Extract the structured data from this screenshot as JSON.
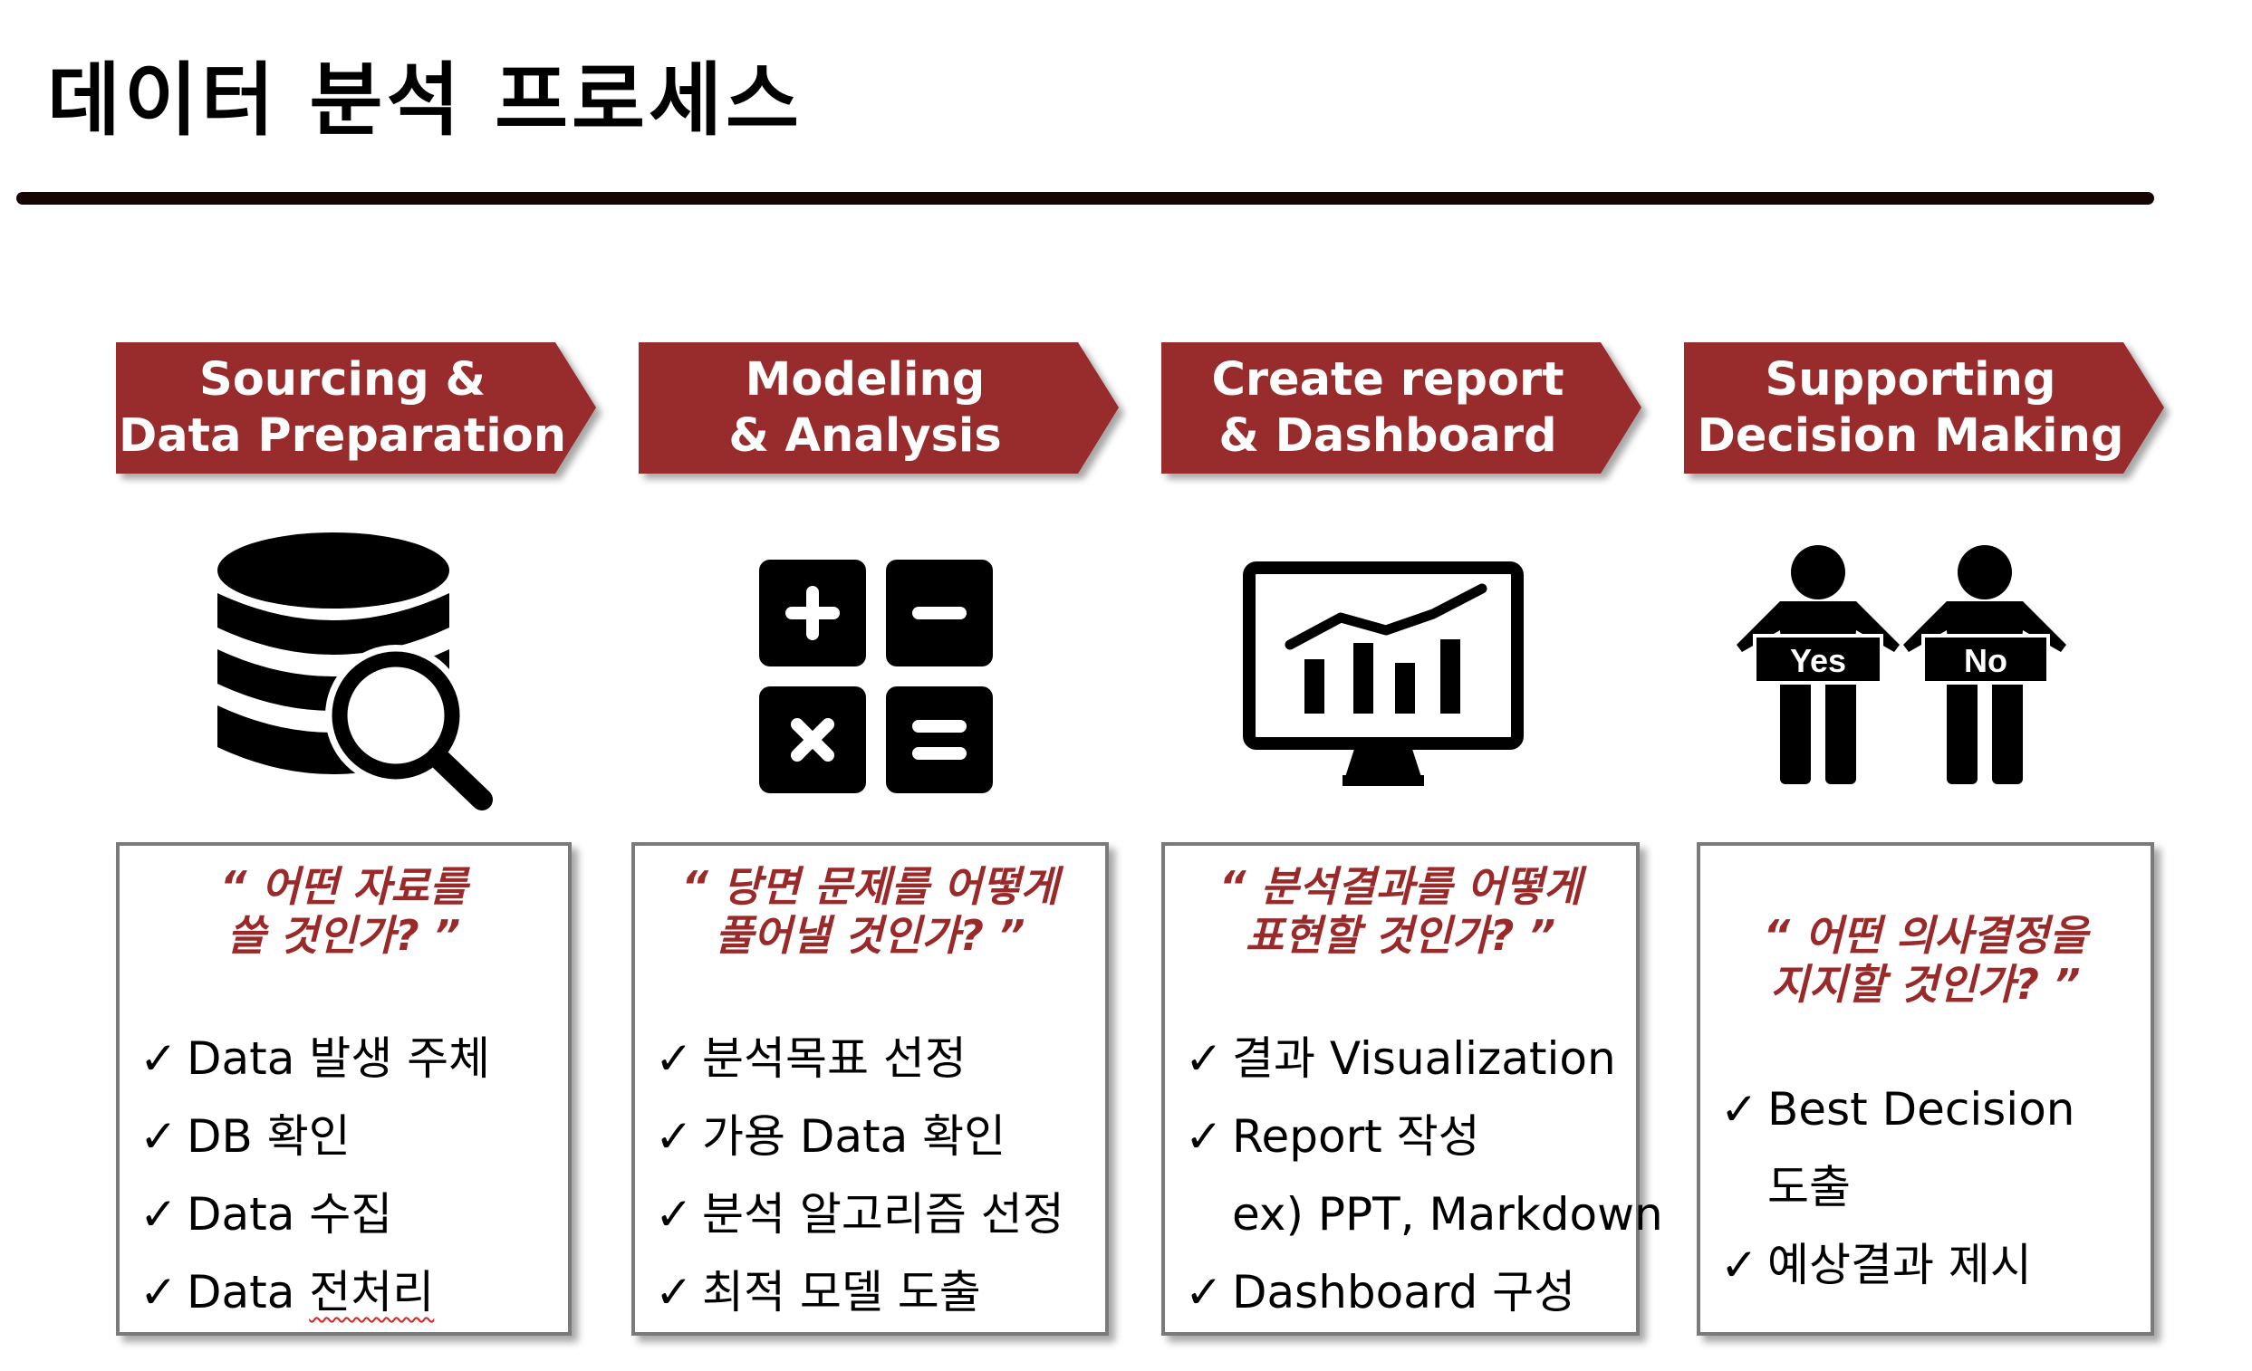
{
  "title": "데이터 분석 프로세스",
  "colors": {
    "accent": "#982b2b",
    "rule": "#150404",
    "quote": "#9a2a2a"
  },
  "steps": [
    {
      "label_line1": "Sourcing &",
      "label_line2": "Data Preparation",
      "icon": "database-search-icon",
      "quote_line1": "“ 어떤 자료를",
      "quote_line2": "쓸 것인가? ”",
      "items": [
        {
          "check": "✓",
          "text": "Data 발생 주체"
        },
        {
          "check": "✓",
          "text": "DB 확인"
        },
        {
          "check": "✓",
          "text": "Data 수집"
        },
        {
          "check": "✓",
          "text_prefix": "Data ",
          "text_marked": "전처리"
        }
      ]
    },
    {
      "label_line1": "Modeling",
      "label_line2": "& Analysis",
      "icon": "calculator-icon",
      "quote_line1": "“ 당면 문제를 어떻게",
      "quote_line2": "풀어낼 것인가? ”",
      "items": [
        {
          "check": "✓",
          "text": "분석목표 선정"
        },
        {
          "check": "✓",
          "text": "가용 Data 확인"
        },
        {
          "check": "✓",
          "text": "분석 알고리즘 선정"
        },
        {
          "check": "✓",
          "text": "최적 모델 도출"
        }
      ]
    },
    {
      "label_line1": "Create report",
      "label_line2": "& Dashboard",
      "icon": "monitor-chart-icon",
      "quote_line1": "“ 분석결과를 어떻게",
      "quote_line2": "표현할 것인가? ”",
      "items": [
        {
          "check": "✓",
          "text": "결과 Visualization"
        },
        {
          "check": "✓",
          "text": "Report 작성"
        },
        {
          "check": "",
          "text": "ex) PPT, Markdown"
        },
        {
          "check": "✓",
          "text": "Dashboard 구성"
        }
      ]
    },
    {
      "label_line1": "Supporting",
      "label_line2": "Decision Making",
      "icon": "people-yes-no-icon",
      "sign_yes": "Yes",
      "sign_no": "No",
      "quote_line1": "“ 어떤 의사결정을",
      "quote_line2": "지지할 것인가? ”",
      "items": [
        {
          "check": "✓",
          "text": "Best Decision"
        },
        {
          "check": "",
          "text": "도출"
        },
        {
          "check": "✓",
          "text": "예상결과 제시"
        }
      ]
    }
  ]
}
